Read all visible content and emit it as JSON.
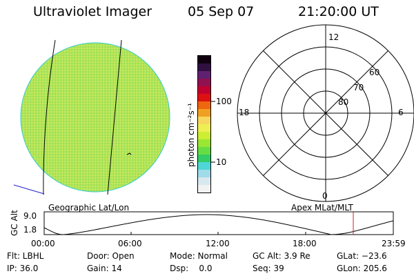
{
  "header": {
    "instrument": "Ultraviolet Imager",
    "date": "05 Sep 07",
    "time": "21:20:00 UT"
  },
  "colorbar": {
    "unit_label": "photon cm⁻²s⁻¹",
    "tick_100": "100",
    "tick_10": "10",
    "colors": [
      "#f2f2f2",
      "#d8e8ef",
      "#9fdbe8",
      "#50d6d6",
      "#33cc66",
      "#66dd44",
      "#99e633",
      "#ccee33",
      "#eeee55",
      "#f6d860",
      "#f0a020",
      "#ee6610",
      "#dd1111",
      "#c00030",
      "#901050",
      "#602070",
      "#301040",
      "#100010"
    ]
  },
  "image_panel": {
    "label": "Geographic Lat/Lon",
    "disk_color": "#bde85a"
  },
  "polar_plot": {
    "label": "Apex MLat/MLT",
    "mlt_12": "12",
    "mlt_18": "18",
    "mlt_6": "6",
    "mlt_0": "0",
    "lat_60": "60",
    "lat_70": "70",
    "lat_80": "80"
  },
  "altitude_plot": {
    "ylabel": "GC Alt",
    "y_top": "9.0",
    "y_bottom": "1.8",
    "x_ticks": [
      "00:00",
      "06:00",
      "12:00",
      "18:00",
      "23:59"
    ],
    "marker_color": "#cc2222"
  },
  "info": {
    "flt": "Flt: LBHL",
    "door": "Door: Open",
    "mode": "Mode: Normal",
    "gc_alt": "GC Alt: 3.9 Re",
    "glat": "GLat: −23.6",
    "ip": "IP: 36.0",
    "gain": "Gain: 14",
    "dsp": "Dsp:    0.0",
    "seq": "Seq: 39",
    "glon": "GLon: 205.6"
  }
}
